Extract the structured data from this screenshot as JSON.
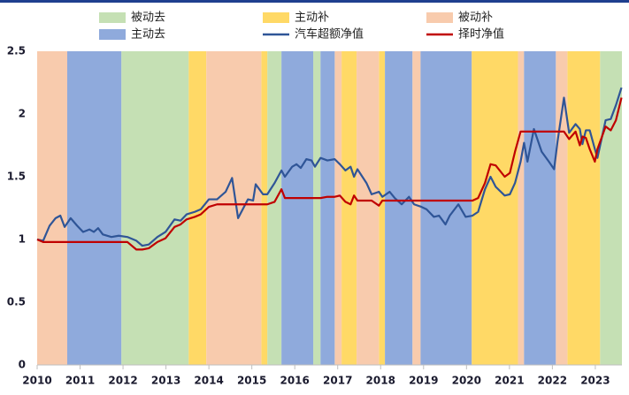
{
  "chart_data": {
    "type": "line",
    "xlim": [
      2010,
      2023.62
    ],
    "xticks": [
      2010,
      2011,
      2012,
      2013,
      2014,
      2015,
      2016,
      2017,
      2018,
      2019,
      2020,
      2021,
      2022,
      2023
    ],
    "ylim": [
      0,
      2.5
    ],
    "yticks": [
      0,
      0.5,
      1,
      1.5,
      2,
      2.5
    ],
    "regions": [
      {
        "name": "被动去",
        "color": "#c5e0b4",
        "spans": [
          [
            2011.96,
            2013.53
          ],
          [
            2015.36,
            2015.69
          ],
          [
            2016.43,
            2016.6
          ],
          [
            2023.11,
            2023.62
          ]
        ]
      },
      {
        "name": "主动补",
        "color": "#ffd966",
        "spans": [
          [
            2013.53,
            2013.94
          ],
          [
            2015.22,
            2015.36
          ],
          [
            2017.09,
            2017.44
          ],
          [
            2017.96,
            2018.1
          ],
          [
            2020.12,
            2021.2
          ],
          [
            2022.35,
            2023.11
          ]
        ]
      },
      {
        "name": "被动补",
        "color": "#f8cbad",
        "spans": [
          [
            2010.0,
            2010.7
          ],
          [
            2013.94,
            2015.22
          ],
          [
            2016.93,
            2017.09
          ],
          [
            2017.44,
            2017.96
          ],
          [
            2018.74,
            2018.93
          ],
          [
            2021.2,
            2021.34
          ],
          [
            2022.08,
            2022.35
          ]
        ]
      },
      {
        "name": "主动去",
        "color": "#8faadc",
        "spans": [
          [
            2010.7,
            2011.96
          ],
          [
            2015.69,
            2016.43
          ],
          [
            2016.6,
            2016.93
          ],
          [
            2018.1,
            2018.74
          ],
          [
            2018.93,
            2020.12
          ],
          [
            2021.34,
            2022.08
          ]
        ]
      }
    ],
    "x": [
      2010.0,
      2010.14,
      2010.29,
      2010.43,
      2010.54,
      2010.64,
      2010.78,
      2010.93,
      2011.07,
      2011.22,
      2011.32,
      2011.42,
      2011.53,
      2011.73,
      2011.9,
      2012.1,
      2012.31,
      2012.45,
      2012.6,
      2012.8,
      2012.99,
      2013.2,
      2013.34,
      2013.48,
      2013.67,
      2013.81,
      2014.0,
      2014.19,
      2014.39,
      2014.54,
      2014.68,
      2014.91,
      2015.03,
      2015.09,
      2015.26,
      2015.36,
      2015.53,
      2015.69,
      2015.77,
      2015.94,
      2016.04,
      2016.14,
      2016.27,
      2016.39,
      2016.47,
      2016.6,
      2016.76,
      2016.93,
      2017.05,
      2017.18,
      2017.3,
      2017.38,
      2017.46,
      2017.67,
      2017.79,
      2017.96,
      2018.04,
      2018.21,
      2018.33,
      2018.49,
      2018.66,
      2018.78,
      2018.95,
      2019.07,
      2019.24,
      2019.36,
      2019.51,
      2019.61,
      2019.81,
      2019.98,
      2020.14,
      2020.27,
      2020.43,
      2020.56,
      2020.68,
      2020.89,
      2021.01,
      2021.13,
      2021.26,
      2021.34,
      2021.42,
      2021.57,
      2021.75,
      2021.92,
      2022.04,
      2022.12,
      2022.27,
      2022.39,
      2022.54,
      2022.64,
      2022.7,
      2022.78,
      2022.87,
      2022.99,
      2023.05,
      2023.24,
      2023.36,
      2023.48,
      2023.61
    ],
    "series": [
      {
        "name": "汽车超额净值",
        "color": "#2f5597",
        "values": [
          1.0,
          0.99,
          1.11,
          1.17,
          1.19,
          1.1,
          1.17,
          1.11,
          1.06,
          1.08,
          1.06,
          1.09,
          1.04,
          1.02,
          1.03,
          1.02,
          0.99,
          0.95,
          0.96,
          1.02,
          1.06,
          1.16,
          1.15,
          1.2,
          1.22,
          1.24,
          1.32,
          1.32,
          1.38,
          1.49,
          1.17,
          1.32,
          1.31,
          1.44,
          1.36,
          1.36,
          1.45,
          1.55,
          1.5,
          1.58,
          1.6,
          1.57,
          1.64,
          1.63,
          1.58,
          1.65,
          1.63,
          1.64,
          1.6,
          1.55,
          1.58,
          1.5,
          1.56,
          1.45,
          1.36,
          1.38,
          1.34,
          1.38,
          1.33,
          1.28,
          1.34,
          1.28,
          1.26,
          1.24,
          1.18,
          1.19,
          1.12,
          1.19,
          1.28,
          1.18,
          1.19,
          1.22,
          1.4,
          1.5,
          1.42,
          1.35,
          1.36,
          1.45,
          1.62,
          1.77,
          1.62,
          1.88,
          1.7,
          1.62,
          1.56,
          1.78,
          2.13,
          1.85,
          1.92,
          1.88,
          1.76,
          1.87,
          1.87,
          1.72,
          1.65,
          1.95,
          1.96,
          2.07,
          2.21
        ]
      },
      {
        "name": "择时净值",
        "color": "#c00000",
        "values": [
          1.0,
          0.98,
          0.98,
          0.98,
          0.98,
          0.98,
          0.98,
          0.98,
          0.98,
          0.98,
          0.98,
          0.98,
          0.98,
          0.98,
          0.98,
          0.98,
          0.92,
          0.92,
          0.93,
          0.98,
          1.01,
          1.1,
          1.12,
          1.16,
          1.18,
          1.2,
          1.26,
          1.28,
          1.28,
          1.28,
          1.28,
          1.28,
          1.28,
          1.28,
          1.28,
          1.28,
          1.3,
          1.4,
          1.33,
          1.33,
          1.33,
          1.33,
          1.33,
          1.33,
          1.33,
          1.33,
          1.34,
          1.34,
          1.35,
          1.3,
          1.28,
          1.35,
          1.31,
          1.31,
          1.31,
          1.27,
          1.31,
          1.31,
          1.31,
          1.31,
          1.31,
          1.31,
          1.31,
          1.31,
          1.31,
          1.31,
          1.31,
          1.31,
          1.31,
          1.31,
          1.31,
          1.33,
          1.45,
          1.6,
          1.59,
          1.5,
          1.53,
          1.7,
          1.86,
          1.86,
          1.86,
          1.86,
          1.86,
          1.86,
          1.86,
          1.86,
          1.86,
          1.8,
          1.86,
          1.75,
          1.82,
          1.81,
          1.72,
          1.62,
          1.72,
          1.9,
          1.87,
          1.95,
          2.13
        ]
      }
    ]
  }
}
